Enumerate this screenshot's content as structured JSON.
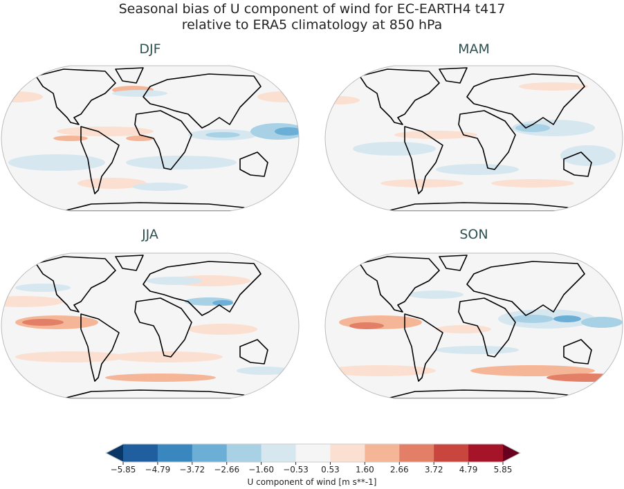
{
  "title_line1": "Seasonal bias of U component of wind for EC-EARTH4 t417",
  "title_line2": "relative to ERA5 climatology at 850 hPa",
  "panels": [
    {
      "label": "DJF"
    },
    {
      "label": "MAM"
    },
    {
      "label": "JJA"
    },
    {
      "label": "SON"
    }
  ],
  "colorbar": {
    "label": "U component of wind [m s**-1]",
    "ticks": [
      "−5.85",
      "−4.79",
      "−3.72",
      "−2.66",
      "−1.60",
      "−0.53",
      "0.53",
      "1.60",
      "2.66",
      "3.72",
      "4.79",
      "5.85"
    ],
    "colors": [
      "#1f5fa0",
      "#3a87c0",
      "#6baed6",
      "#a9d1e5",
      "#d6e7f0",
      "#f5f5f5",
      "#fbdfd0",
      "#f5b697",
      "#e27f66",
      "#c9463f",
      "#a51429"
    ],
    "under_color": "#0b3766",
    "over_color": "#67001f"
  },
  "chart_data": {
    "type": "heatmap",
    "title": "Seasonal bias of U component of wind for EC-EARTH4 t417 relative to ERA5 climatology at 850 hPa",
    "panels": [
      "DJF",
      "MAM",
      "JJA",
      "SON"
    ],
    "levels": [
      -5.85,
      -4.79,
      -3.72,
      -2.66,
      -1.6,
      -0.53,
      0.53,
      1.6,
      2.66,
      3.72,
      4.79,
      5.85
    ],
    "extend": "both",
    "units": "m s**-1",
    "colorbar_label": "U component of wind [m s**-1]",
    "colorbar_placement": "bottom"
  }
}
